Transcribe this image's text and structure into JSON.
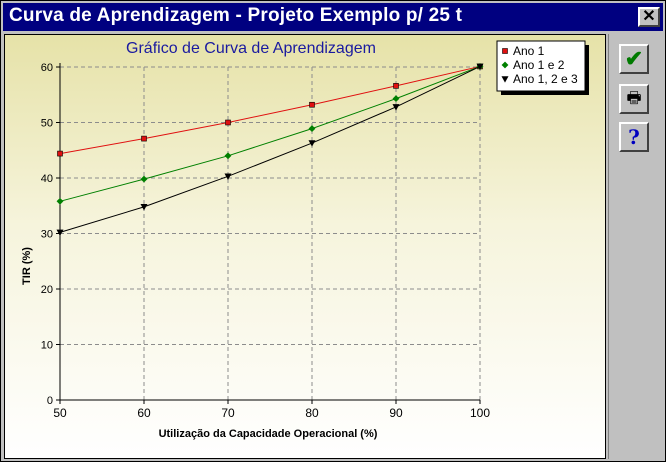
{
  "window": {
    "title": "Curva de Aprendizagem - Projeto Exemplo p/ 25 t",
    "close_glyph": "✕"
  },
  "toolbar": {
    "ok_icon": "check-icon",
    "ok_glyph": "✔",
    "print_icon": "printer-icon",
    "print_glyph": "🖶",
    "help_icon": "help-icon",
    "help_glyph": "?"
  },
  "chart_data": {
    "type": "line",
    "title": "Gráfico de Curva de Aprendizagem",
    "xlabel": "Utilização da Capacidade Operacional (%)",
    "ylabel": "TIR (%)",
    "x": [
      50,
      60,
      70,
      80,
      90,
      100
    ],
    "xlim": [
      50,
      100
    ],
    "ylim": [
      0,
      60
    ],
    "xticks": [
      50,
      60,
      70,
      80,
      90,
      100
    ],
    "yticks": [
      0,
      10,
      20,
      30,
      40,
      50,
      60
    ],
    "grid": true,
    "legend_position": "top-right",
    "series": [
      {
        "name": "Ano 1",
        "values": [
          44.4,
          47.1,
          50.0,
          53.2,
          56.6,
          60.1
        ],
        "color": "#e01010",
        "marker": "square"
      },
      {
        "name": "Ano 1 e 2",
        "values": [
          35.8,
          39.8,
          44.0,
          48.9,
          54.3,
          60.1
        ],
        "color": "#008000",
        "marker": "diamond"
      },
      {
        "name": "Ano 1, 2 e 3",
        "values": [
          30.2,
          34.8,
          40.3,
          46.3,
          52.8,
          60.1
        ],
        "color": "#000000",
        "marker": "triangle-down"
      }
    ]
  }
}
